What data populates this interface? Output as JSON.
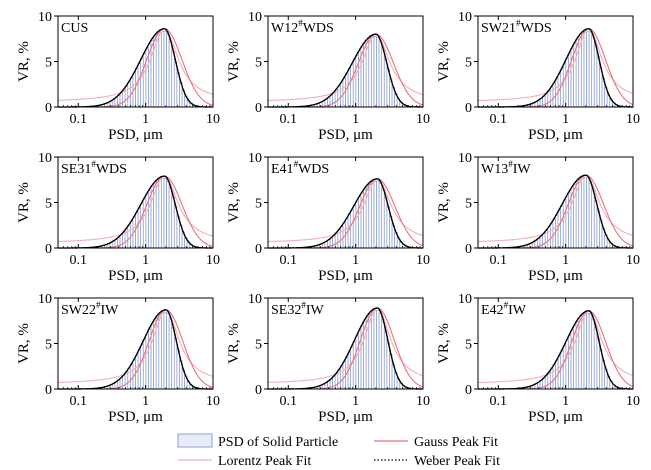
{
  "chart_data": {
    "type": "bar",
    "layout": "3x3 grid of histograms with fitted peak curves",
    "xscale": "log",
    "xlim": [
      0.05,
      10
    ],
    "ylim": [
      0,
      10
    ],
    "xticks": [
      "0.1",
      "1",
      "10"
    ],
    "yticks": [
      "0",
      "5",
      "10"
    ],
    "xlabel": "PSD, μm",
    "ylabel": "VR, %",
    "colors": {
      "psd_bars": "#8fa2d4",
      "gauss": "#e8737f",
      "lorentz": "#f4aeb6",
      "weber": "#000000",
      "black_fit": "#000000"
    },
    "legend": {
      "placement": "bottom",
      "entries": [
        {
          "label": "PSD of Solid Particle",
          "style": "bar"
        },
        {
          "label": "Gauss Peak Fit",
          "style": "line-red"
        },
        {
          "label": "Lorentz Peak Fit",
          "style": "line-pink"
        },
        {
          "label": "Weber Peak Fit",
          "style": "dotted-black"
        }
      ]
    },
    "panels": [
      {
        "label": "CUS",
        "peak_x": 1.9,
        "peak_y": 8.6,
        "sigma": 0.26
      },
      {
        "label": "W12",
        "label_sup": "#",
        "label_suffix": "WDS",
        "peak_x": 2.0,
        "peak_y": 8.0,
        "sigma": 0.26
      },
      {
        "label": "SW21",
        "label_sup": "#",
        "label_suffix": "WDS",
        "peak_x": 2.2,
        "peak_y": 8.6,
        "sigma": 0.25
      },
      {
        "label": "SE31",
        "label_sup": "#",
        "label_suffix": "WDS",
        "peak_x": 1.9,
        "peak_y": 7.9,
        "sigma": 0.26
      },
      {
        "label": "E41",
        "label_sup": "#",
        "label_suffix": "WDS",
        "peak_x": 2.1,
        "peak_y": 7.6,
        "sigma": 0.26
      },
      {
        "label": "W13",
        "label_sup": "#",
        "label_suffix": "IW",
        "peak_x": 2.0,
        "peak_y": 8.0,
        "sigma": 0.26
      },
      {
        "label": "SW22",
        "label_sup": "#",
        "label_suffix": "IW",
        "peak_x": 2.0,
        "peak_y": 8.7,
        "sigma": 0.25
      },
      {
        "label": "SE32",
        "label_sup": "#",
        "label_suffix": "IW",
        "peak_x": 2.1,
        "peak_y": 8.9,
        "sigma": 0.25
      },
      {
        "label": "E42",
        "label_sup": "#",
        "label_suffix": "IW",
        "peak_x": 2.2,
        "peak_y": 8.6,
        "sigma": 0.25
      }
    ]
  }
}
